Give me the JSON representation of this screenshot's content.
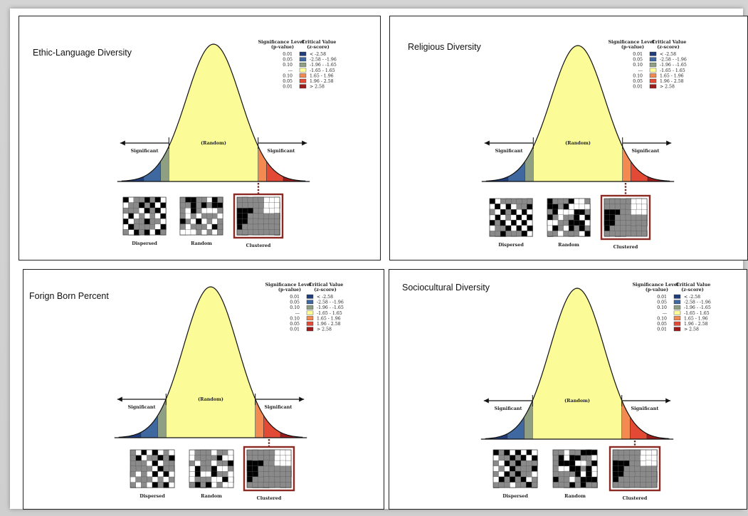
{
  "colors": {
    "band_1": "#1f3d7a",
    "band_2": "#3f68a0",
    "band_3": "#8e9f83",
    "band_4": "#fbfb97",
    "band_5": "#f28a52",
    "band_6": "#e24a35",
    "band_7": "#9e1b1b",
    "highlight_frame": "#8b2a22"
  },
  "legend": {
    "sig_header_1": "Significance Level",
    "sig_header_2": "(p-value)",
    "crit_header_1": "Critical Value",
    "crit_header_2": "(z-score)",
    "rows": [
      {
        "p": "0.01",
        "z": "< -2.58",
        "color": "#1f3d7a"
      },
      {
        "p": "0.05",
        "z": "-2.58 - -1.96",
        "color": "#3f68a0"
      },
      {
        "p": "0.10",
        "z": "-1.96 - -1.65",
        "color": "#8e9f83"
      },
      {
        "p": "---",
        "z": "-1.65 - 1.65",
        "color": "#fbfb97"
      },
      {
        "p": "0.10",
        "z": "1.65 - 1.96",
        "color": "#f28a52"
      },
      {
        "p": "0.05",
        "z": "1.96 - 2.58",
        "color": "#e24a35"
      },
      {
        "p": "0.01",
        "z": "> 2.58",
        "color": "#9e1b1b"
      }
    ]
  },
  "curve_labels": {
    "left": "Significant",
    "center": "(Random)",
    "right": "Significant"
  },
  "maps": {
    "dispersed": "Dispersed",
    "random": "Random",
    "clustered": "Clustered"
  },
  "panels": [
    {
      "title": "Ethic-Language Diversity"
    },
    {
      "title": "Religious Diversity"
    },
    {
      "title": "Forign Born Percent"
    },
    {
      "title": "Sociocultural Diversity"
    }
  ]
}
